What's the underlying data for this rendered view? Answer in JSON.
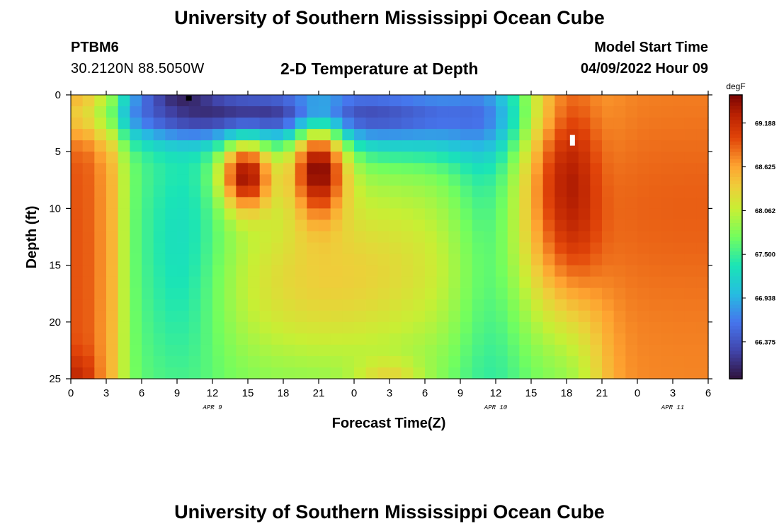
{
  "header": {
    "title": "University of Southern Mississippi Ocean Cube",
    "station": "PTBM6",
    "coordinates": "30.2120N  88.5050W",
    "subtitle": "2-D Temperature at Depth",
    "model_start_label": "Model Start Time",
    "model_start_value": "04/09/2022 Hour 09"
  },
  "footer": {
    "title": "University of Southern Mississippi Ocean Cube"
  },
  "chart_data": {
    "type": "heatmap",
    "title": "2-D Temperature at Depth",
    "xlabel": "Forecast Time(Z)",
    "ylabel": "Depth (ft)",
    "x_range_hours": [
      0,
      54
    ],
    "y_range_ft": [
      0,
      25
    ],
    "y_inverted": true,
    "x_ticks": [
      {
        "hour": 0,
        "label": "0"
      },
      {
        "hour": 3,
        "label": "3"
      },
      {
        "hour": 6,
        "label": "6"
      },
      {
        "hour": 9,
        "label": "9"
      },
      {
        "hour": 12,
        "label": "12"
      },
      {
        "hour": 15,
        "label": "15"
      },
      {
        "hour": 18,
        "label": "18"
      },
      {
        "hour": 21,
        "label": "21"
      },
      {
        "hour": 24,
        "label": "0"
      },
      {
        "hour": 27,
        "label": "3"
      },
      {
        "hour": 30,
        "label": "6"
      },
      {
        "hour": 33,
        "label": "9"
      },
      {
        "hour": 36,
        "label": "12"
      },
      {
        "hour": 39,
        "label": "15"
      },
      {
        "hour": 42,
        "label": "18"
      },
      {
        "hour": 45,
        "label": "21"
      },
      {
        "hour": 48,
        "label": "0"
      },
      {
        "hour": 51,
        "label": "3"
      },
      {
        "hour": 54,
        "label": "6"
      }
    ],
    "date_labels": [
      {
        "hour": 12,
        "label": "APR 9"
      },
      {
        "hour": 36,
        "label": "APR 10"
      },
      {
        "hour": 51,
        "label": "APR 11"
      }
    ],
    "y_ticks": [
      0,
      5,
      10,
      15,
      20,
      25
    ],
    "colorbar": {
      "unit": "degF",
      "min": 65.9,
      "max": 69.55,
      "ticks": [
        66.375,
        66.938,
        67.5,
        68.062,
        68.625,
        69.188
      ],
      "tick_labels": [
        "66.375",
        "66.938",
        "67.500",
        "68.062",
        "68.625",
        "69.188"
      ]
    },
    "grid": {
      "cols": 54,
      "rows": 25,
      "regions": [
        {
          "name": "early warm column",
          "hours": [
            0,
            3
          ],
          "depths": [
            0,
            25
          ],
          "value": 68.9
        },
        {
          "name": "surface cold layer",
          "hours": [
            4,
            26
          ],
          "depths": [
            0,
            5
          ],
          "value": 66.7
        },
        {
          "name": "coldest surface pocket",
          "hours": [
            7,
            12
          ],
          "depths": [
            0,
            1
          ],
          "value": 66.1
        },
        {
          "name": "cool mid column",
          "hours": [
            6,
            12
          ],
          "depths": [
            5,
            23
          ],
          "value": 67.3
        },
        {
          "name": "warm core 1",
          "hours": [
            13,
            16
          ],
          "depths": [
            3,
            11
          ],
          "value": 69.0
        },
        {
          "name": "warm core 2",
          "hours": [
            19,
            23
          ],
          "depths": [
            0,
            12
          ],
          "value": 69.0
        },
        {
          "name": "warm mid water",
          "hours": [
            17,
            33
          ],
          "depths": [
            10,
            24
          ],
          "value": 68.1
        },
        {
          "name": "cool band",
          "hours": [
            33,
            38
          ],
          "depths": [
            0,
            25
          ],
          "value": 67.4
        },
        {
          "name": "warm surface late",
          "hours": [
            39,
            47
          ],
          "depths": [
            0,
            20
          ],
          "value": 69.3
        },
        {
          "name": "warm end",
          "hours": [
            47,
            54
          ],
          "depths": [
            0,
            25
          ],
          "value": 68.6
        }
      ]
    },
    "markers": [
      {
        "name": "min-marker",
        "hour": 10,
        "depth": 0.3,
        "color": "#000000"
      },
      {
        "name": "max-marker",
        "hour": 42.5,
        "depth": 4,
        "color": "#ffffff"
      }
    ]
  }
}
